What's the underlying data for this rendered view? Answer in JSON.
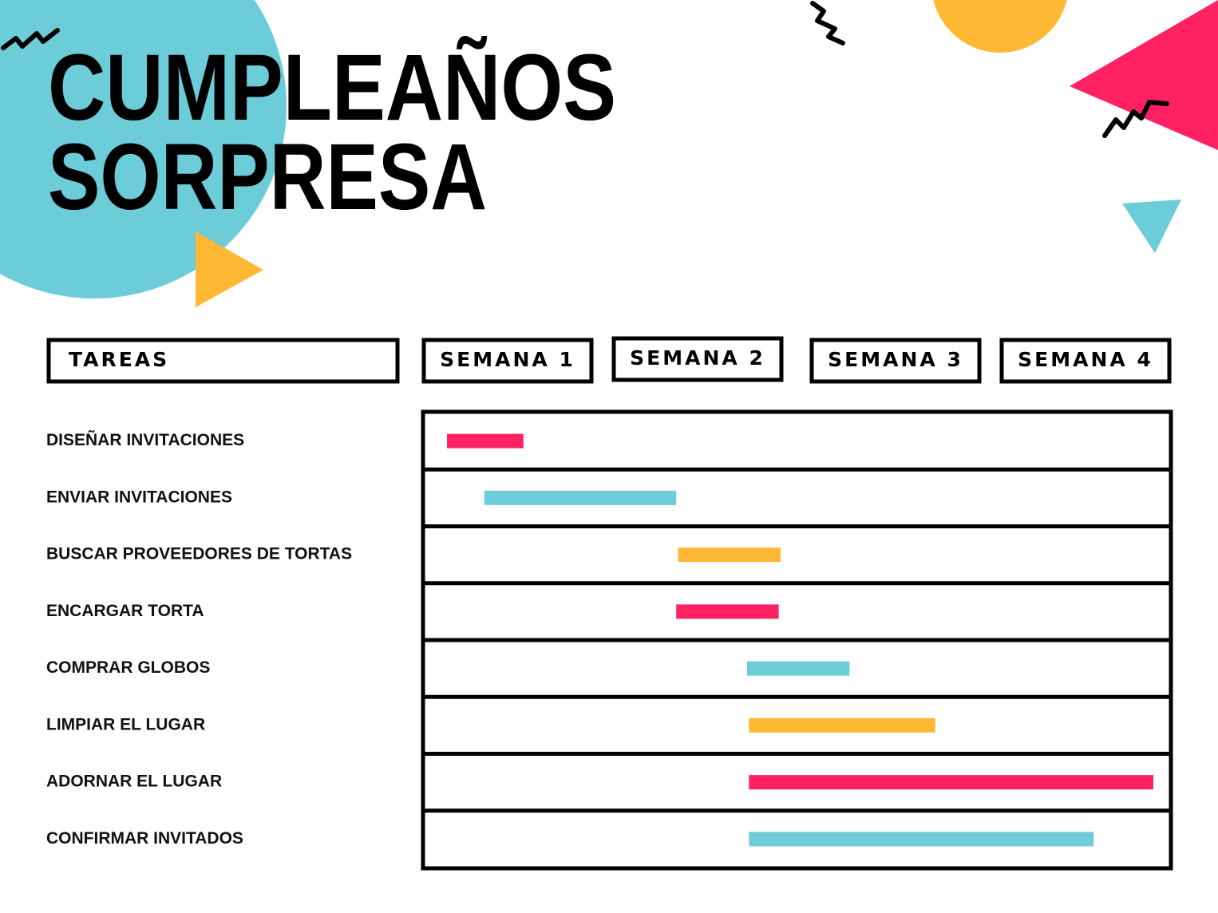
{
  "chart_data": {
    "type": "gantt",
    "title": [
      "CUMPLEAÑOS",
      "SORPRESA"
    ],
    "task_header": "TAREAS",
    "periods": [
      "SEMANA 1",
      "SEMANA 2",
      "SEMANA 3",
      "SEMANA 4"
    ],
    "xlim": [
      0,
      4
    ],
    "tasks": [
      "DISEÑAR INVITACIONES",
      "ENVIAR INVITACIONES",
      "BUSCAR PROVEEDORES DE TORTAS",
      "ENCARGAR TORTA",
      "COMPRAR GLOBOS",
      "LIMPIAR EL LUGAR",
      "ADORNAR EL LUGAR",
      "CONFIRMAR INVITADOS"
    ],
    "start": [
      0.12,
      0.32,
      1.36,
      1.35,
      1.73,
      1.74,
      1.74,
      1.74
    ],
    "end": [
      0.53,
      1.35,
      1.91,
      1.9,
      2.28,
      2.74,
      3.91,
      3.59
    ],
    "colors": [
      "#ff2161",
      "#6ccdd9",
      "#ffb833",
      "#ff2161",
      "#6ccdd9",
      "#ffb833",
      "#ff2161",
      "#6ccdd9"
    ]
  }
}
